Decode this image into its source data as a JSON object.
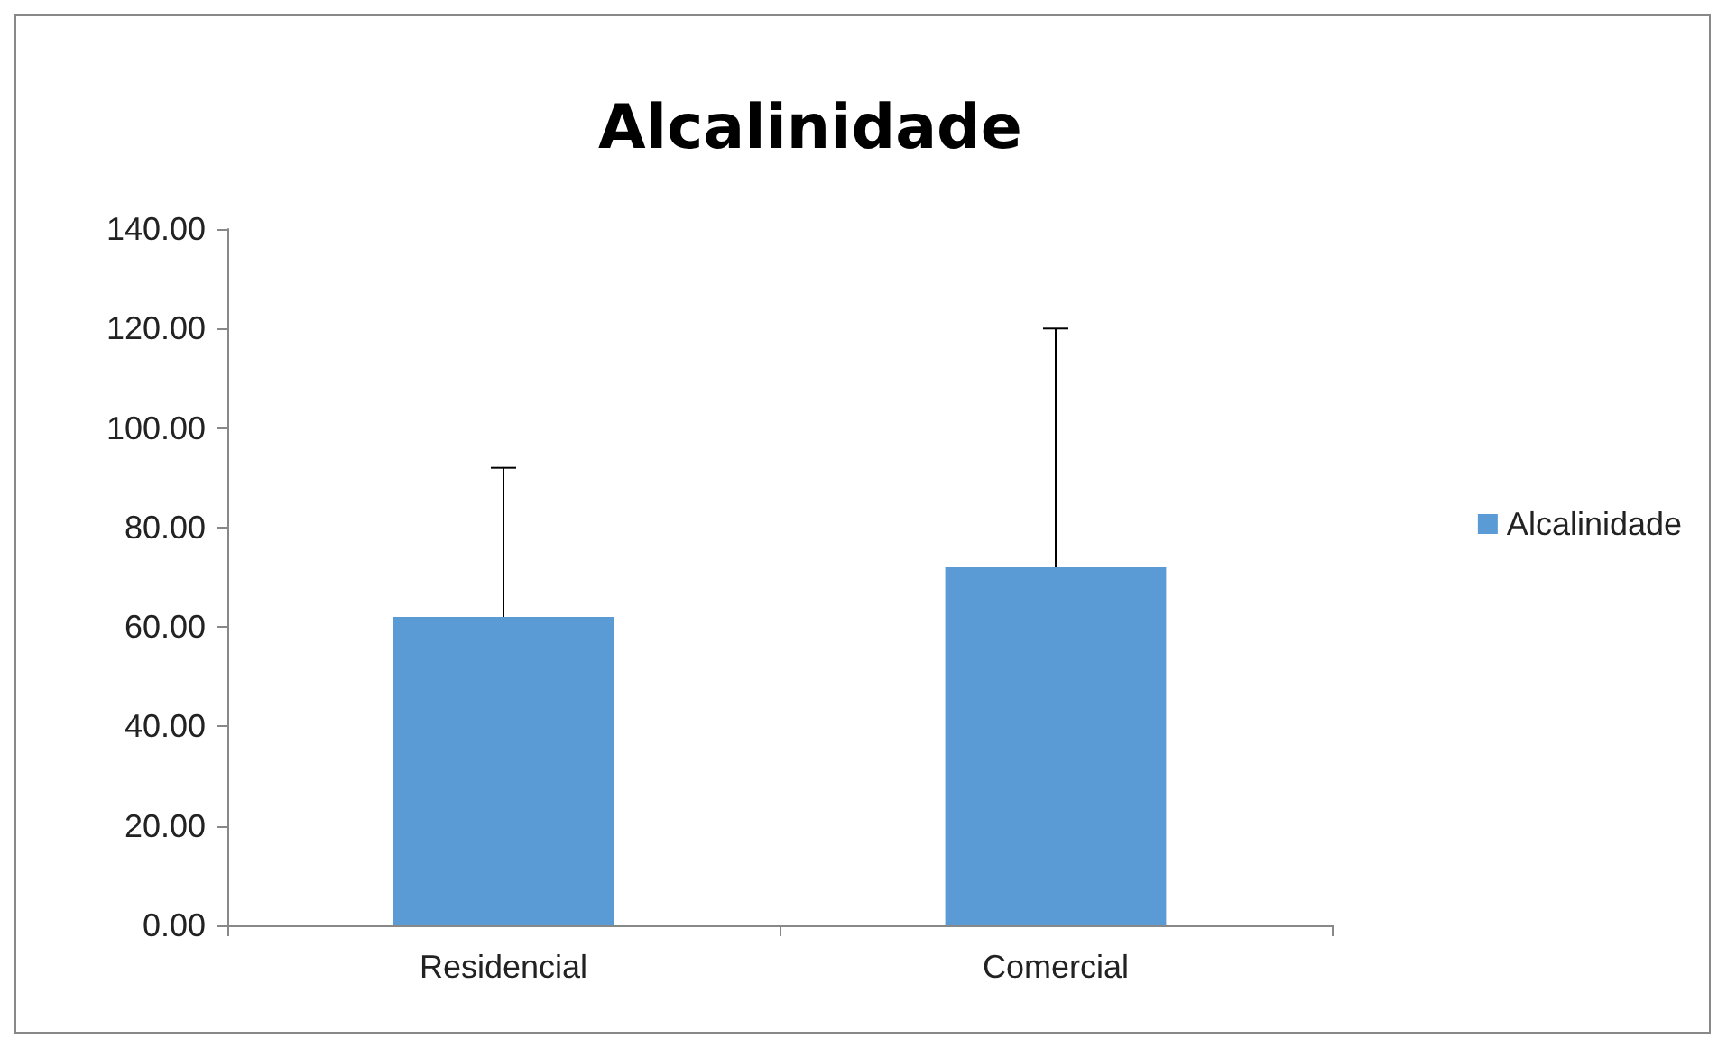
{
  "chart_data": {
    "type": "bar",
    "title": "Alcalinidade",
    "categories": [
      "Residencial",
      "Comercial"
    ],
    "series": [
      {
        "name": "Alcalinidade",
        "color": "#5b9bd5",
        "values": [
          62,
          72
        ],
        "errors": [
          [
            62,
            92
          ],
          [
            72,
            120
          ]
        ]
      }
    ],
    "ylim": [
      0,
      140
    ],
    "yticks": [
      {
        "value": 0,
        "label": "0.00"
      },
      {
        "value": 20,
        "label": "20.00"
      },
      {
        "value": 40,
        "label": "40.00"
      },
      {
        "value": 60,
        "label": "60.00"
      },
      {
        "value": 80,
        "label": "80.00"
      },
      {
        "value": 100,
        "label": "100.00"
      },
      {
        "value": 120,
        "label": "120.00"
      },
      {
        "value": 140,
        "label": "140.00"
      }
    ],
    "grid": false,
    "legend": "right"
  }
}
